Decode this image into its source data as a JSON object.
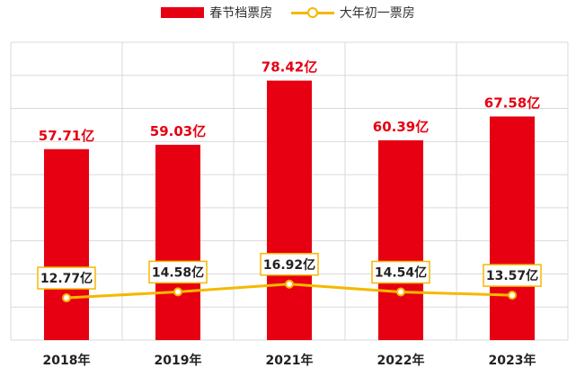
{
  "legend": {
    "bar_label": "春节档票房",
    "line_label": "大年初一票房"
  },
  "colors": {
    "bar": "#e60012",
    "line": "#f5b800",
    "grid": "#d9d9d9",
    "label_box_border": "#f5b800"
  },
  "chart_data": {
    "type": "bar",
    "categories": [
      "2018年",
      "2019年",
      "2021年",
      "2022年",
      "2023年"
    ],
    "series": [
      {
        "name": "春节档票房",
        "type": "bar",
        "values": [
          57.71,
          59.03,
          78.42,
          60.39,
          67.58
        ],
        "labels": [
          "57.71亿",
          "59.03亿",
          "78.42亿",
          "60.39亿",
          "67.58亿"
        ]
      },
      {
        "name": "大年初一票房",
        "type": "line",
        "values": [
          12.77,
          14.58,
          16.92,
          14.54,
          13.57
        ],
        "labels": [
          "12.77亿",
          "14.58亿",
          "16.92亿",
          "14.54亿",
          "13.57亿"
        ]
      }
    ],
    "ylim": [
      0,
      90
    ],
    "grid": true,
    "legend_position": "top-center"
  }
}
